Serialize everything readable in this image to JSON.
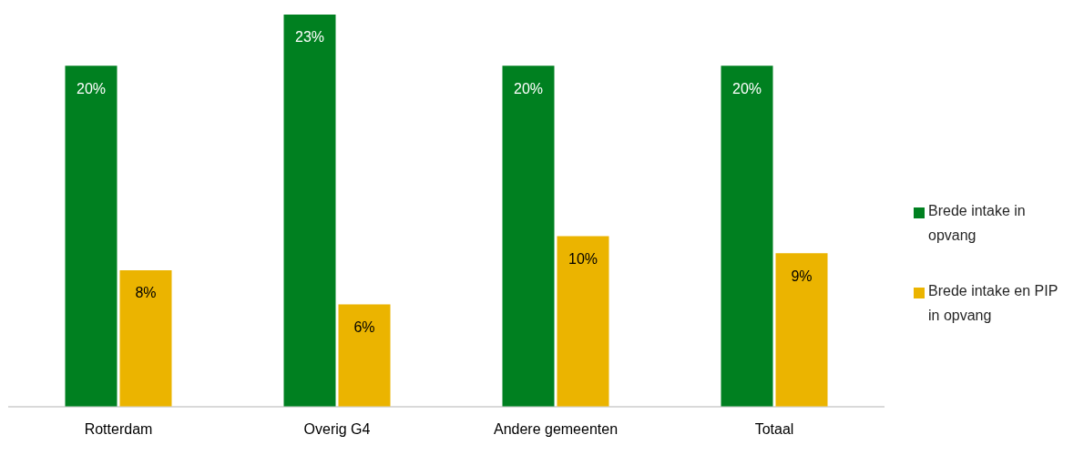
{
  "chart_data": {
    "type": "bar",
    "categories": [
      "Rotterdam",
      "Overig G4",
      "Andere gemeenten",
      "Totaal"
    ],
    "series": [
      {
        "name": "Brede intake in opvang",
        "color": "#008020",
        "values": [
          20,
          23,
          20,
          20
        ],
        "value_labels": [
          "20%",
          "23%",
          "20%",
          "20%"
        ]
      },
      {
        "name": "Brede intake en PIP in opvang",
        "color": "#ebb400",
        "values": [
          8,
          6,
          10,
          9
        ],
        "value_labels": [
          "8%",
          "6%",
          "10%",
          "9%"
        ]
      }
    ],
    "legend": "right",
    "grid": false
  }
}
